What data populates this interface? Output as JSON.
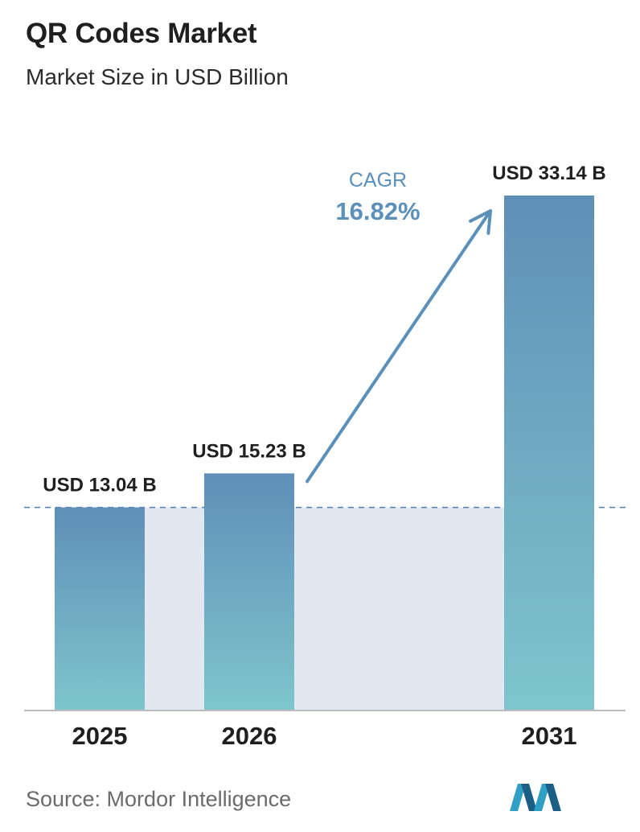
{
  "header": {
    "title": "QR Codes Market",
    "subtitle": "Market Size in USD Billion"
  },
  "chart_data": {
    "type": "bar",
    "categories": [
      "2025",
      "2026",
      "2031"
    ],
    "values": [
      13.04,
      15.23,
      33.14
    ],
    "value_labels": [
      "USD 13.04 B",
      "USD 15.23 B",
      "USD 33.14 B"
    ],
    "title": "QR Codes Market",
    "subtitle": "Market Size in USD Billion",
    "xlabel": "",
    "ylabel": "",
    "ylim": [
      0,
      33.14
    ],
    "grid": false,
    "legend": "none",
    "annotation": {
      "label": "CAGR",
      "value": "16.82%"
    },
    "colors": {
      "bar_top": "#5f8fb8",
      "bar_bottom": "#7ec5cc",
      "shaded_band": "#e1e8f1",
      "reference_line": "#4f7fa8",
      "arrow": "#5b90bb",
      "cagr_label": "#5b90bb",
      "axis": "#bdbdbd"
    }
  },
  "footer": {
    "source": "Source:  Mordor Intelligence",
    "logo_icon": "mordor-intelligence-logo-icon"
  }
}
